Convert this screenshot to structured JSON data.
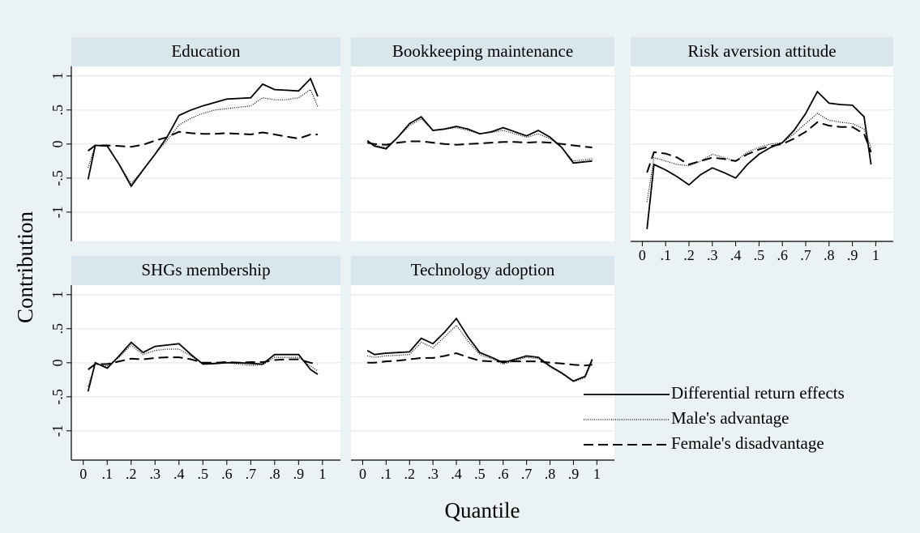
{
  "xlabel": "Quantile",
  "ylabel": "Contribution",
  "xlim": [
    -0.05,
    1.075
  ],
  "xticks": [
    0,
    {
      "value": 0.1,
      "label": ".1"
    },
    {
      "value": 0.2,
      "label": ".2"
    },
    {
      "value": 0.3,
      "label": ".3"
    },
    {
      "value": 0.4,
      "label": ".4"
    },
    {
      "value": 0.5,
      "label": ".5"
    },
    {
      "value": 0.6,
      "label": ".6"
    },
    {
      "value": 0.7,
      "label": ".7"
    },
    {
      "value": 0.8,
      "label": ".8"
    },
    {
      "value": 0.9,
      "label": ".9"
    },
    1
  ],
  "ylim": [
    -1.43,
    1.14
  ],
  "yticks": [
    -1,
    {
      "value": -0.5,
      "label": "-.5"
    },
    0,
    {
      "value": 0.5,
      "label": ".5"
    },
    1
  ],
  "chart_data": [
    {
      "type": "line",
      "title": "Education",
      "x": [
        0.02,
        0.05,
        0.1,
        0.15,
        0.2,
        0.25,
        0.3,
        0.35,
        0.4,
        0.45,
        0.5,
        0.55,
        0.6,
        0.65,
        0.7,
        0.75,
        0.8,
        0.85,
        0.9,
        0.95,
        0.98
      ],
      "series": [
        {
          "name": "Differential return effects",
          "color": "#000000",
          "dash": "solid",
          "values": [
            -0.52,
            -0.02,
            -0.03,
            -0.3,
            -0.62,
            -0.38,
            -0.15,
            0.1,
            0.42,
            0.5,
            0.56,
            0.61,
            0.66,
            0.67,
            0.68,
            0.88,
            0.8,
            0.79,
            0.78,
            0.96,
            0.7
          ]
        },
        {
          "name": "Male's advantage",
          "color": "#000000",
          "dash": "dotted",
          "values": [
            -0.35,
            -0.02,
            -0.02,
            -0.3,
            -0.58,
            -0.38,
            -0.15,
            0.05,
            0.28,
            0.38,
            0.45,
            0.5,
            0.52,
            0.54,
            0.56,
            0.68,
            0.65,
            0.65,
            0.68,
            0.8,
            0.55
          ]
        },
        {
          "name": "Female's disadvantage",
          "color": "#000000",
          "dash": "dashed",
          "values": [
            -0.1,
            -0.02,
            -0.02,
            -0.03,
            -0.04,
            -0.01,
            0.05,
            0.1,
            0.18,
            0.16,
            0.15,
            0.15,
            0.16,
            0.15,
            0.14,
            0.17,
            0.14,
            0.11,
            0.08,
            0.14,
            0.14
          ]
        }
      ]
    },
    {
      "type": "line",
      "title": "Bookkeeping maintenance",
      "x": [
        0.02,
        0.05,
        0.1,
        0.15,
        0.2,
        0.25,
        0.3,
        0.35,
        0.4,
        0.45,
        0.5,
        0.55,
        0.6,
        0.65,
        0.7,
        0.75,
        0.8,
        0.85,
        0.9,
        0.95,
        0.98
      ],
      "series": [
        {
          "color": "#000000",
          "dash": "solid",
          "values": [
            0.05,
            -0.03,
            -0.07,
            0.1,
            0.3,
            0.4,
            0.2,
            0.22,
            0.26,
            0.22,
            0.15,
            0.18,
            0.24,
            0.18,
            0.12,
            0.2,
            0.1,
            -0.05,
            -0.28,
            -0.26,
            -0.25
          ]
        },
        {
          "color": "#000000",
          "dash": "dotted",
          "values": [
            0.02,
            -0.02,
            -0.05,
            0.1,
            0.27,
            0.37,
            0.2,
            0.22,
            0.24,
            0.2,
            0.15,
            0.17,
            0.2,
            0.15,
            0.1,
            0.15,
            0.08,
            -0.05,
            -0.25,
            -0.23,
            -0.22
          ]
        },
        {
          "color": "#000000",
          "dash": "dashed",
          "values": [
            0.02,
            0.0,
            -0.01,
            0.02,
            0.04,
            0.04,
            0.02,
            0.0,
            -0.01,
            0.0,
            0.01,
            0.02,
            0.03,
            0.03,
            0.02,
            0.03,
            0.02,
            0.0,
            -0.02,
            -0.04,
            -0.05
          ]
        }
      ]
    },
    {
      "type": "line",
      "title": "Risk aversion attitude",
      "x": [
        0.02,
        0.05,
        0.1,
        0.15,
        0.2,
        0.25,
        0.3,
        0.35,
        0.4,
        0.45,
        0.5,
        0.55,
        0.6,
        0.65,
        0.7,
        0.75,
        0.8,
        0.85,
        0.9,
        0.95,
        0.98
      ],
      "series": [
        {
          "color": "#000000",
          "dash": "solid",
          "values": [
            -1.25,
            -0.3,
            -0.38,
            -0.48,
            -0.6,
            -0.45,
            -0.35,
            -0.42,
            -0.5,
            -0.3,
            -0.15,
            -0.05,
            0.02,
            0.2,
            0.45,
            0.77,
            0.6,
            0.58,
            0.57,
            0.4,
            -0.3
          ]
        },
        {
          "color": "#000000",
          "dash": "dotted",
          "values": [
            -0.85,
            -0.2,
            -0.25,
            -0.3,
            -0.32,
            -0.25,
            -0.15,
            -0.2,
            -0.25,
            -0.12,
            -0.05,
            0.0,
            0.02,
            0.15,
            0.3,
            0.45,
            0.35,
            0.32,
            0.3,
            0.22,
            -0.05
          ]
        },
        {
          "color": "#000000",
          "dash": "dashed",
          "values": [
            -0.42,
            -0.12,
            -0.14,
            -0.2,
            -0.3,
            -0.25,
            -0.2,
            -0.22,
            -0.25,
            -0.15,
            -0.08,
            -0.03,
            0.0,
            0.08,
            0.18,
            0.32,
            0.27,
            0.25,
            0.25,
            0.15,
            -0.12
          ]
        }
      ]
    },
    {
      "type": "line",
      "title": "SHGs membership",
      "x": [
        0.02,
        0.05,
        0.1,
        0.15,
        0.2,
        0.25,
        0.3,
        0.35,
        0.4,
        0.45,
        0.5,
        0.55,
        0.6,
        0.65,
        0.7,
        0.75,
        0.8,
        0.85,
        0.9,
        0.95,
        0.98
      ],
      "series": [
        {
          "color": "#000000",
          "dash": "solid",
          "values": [
            -0.42,
            0.0,
            -0.08,
            0.1,
            0.3,
            0.15,
            0.24,
            0.26,
            0.28,
            0.12,
            -0.02,
            -0.01,
            0.0,
            0.0,
            -0.01,
            -0.02,
            0.12,
            0.12,
            0.12,
            -0.1,
            -0.17
          ]
        },
        {
          "color": "#000000",
          "dash": "dotted",
          "values": [
            -0.35,
            -0.02,
            -0.05,
            0.08,
            0.26,
            0.12,
            0.18,
            0.2,
            0.2,
            0.1,
            -0.02,
            -0.02,
            0.0,
            -0.02,
            -0.04,
            -0.03,
            0.08,
            0.08,
            0.08,
            -0.05,
            -0.12
          ]
        },
        {
          "color": "#000000",
          "dash": "dashed",
          "values": [
            -0.1,
            -0.02,
            -0.02,
            0.02,
            0.06,
            0.05,
            0.07,
            0.08,
            0.08,
            0.05,
            0.0,
            0.0,
            0.01,
            0.0,
            0.01,
            0.01,
            0.04,
            0.05,
            0.05,
            0.0,
            -0.02
          ]
        }
      ]
    },
    {
      "type": "line",
      "title": "Technology adoption",
      "x": [
        0.02,
        0.05,
        0.1,
        0.15,
        0.2,
        0.25,
        0.3,
        0.35,
        0.4,
        0.45,
        0.5,
        0.55,
        0.6,
        0.65,
        0.7,
        0.75,
        0.8,
        0.85,
        0.9,
        0.95,
        0.98
      ],
      "series": [
        {
          "color": "#000000",
          "dash": "solid",
          "values": [
            0.18,
            0.12,
            0.14,
            0.15,
            0.16,
            0.36,
            0.28,
            0.45,
            0.65,
            0.38,
            0.15,
            0.08,
            0.0,
            0.05,
            0.1,
            0.08,
            -0.05,
            -0.15,
            -0.27,
            -0.2,
            0.05
          ]
        },
        {
          "color": "#000000",
          "dash": "dotted",
          "values": [
            0.1,
            0.08,
            0.1,
            0.11,
            0.12,
            0.3,
            0.22,
            0.38,
            0.55,
            0.32,
            0.12,
            0.06,
            -0.02,
            0.03,
            0.08,
            0.06,
            -0.06,
            -0.16,
            -0.28,
            -0.22,
            0.02
          ]
        },
        {
          "color": "#000000",
          "dash": "dashed",
          "values": [
            0.0,
            0.0,
            0.02,
            0.03,
            0.05,
            0.07,
            0.07,
            0.1,
            0.14,
            0.08,
            0.03,
            0.02,
            0.02,
            0.02,
            0.02,
            0.02,
            0.0,
            -0.01,
            -0.03,
            -0.04,
            -0.03
          ]
        }
      ]
    }
  ]
}
